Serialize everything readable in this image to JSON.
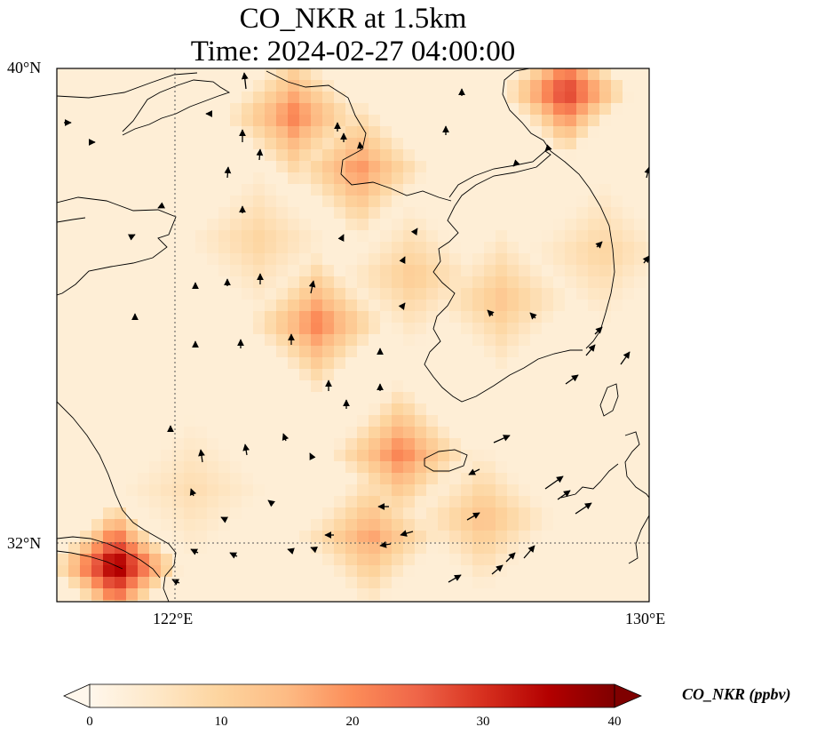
{
  "title": {
    "line1": "CO_NKR at 1.5km",
    "line2": "Time: 2024-02-27 04:00:00"
  },
  "map": {
    "lon_range": [
      120,
      130
    ],
    "lat_range": [
      31,
      40
    ],
    "lat_labels": [
      "40°N",
      "32°N"
    ],
    "lon_labels": [
      "122°E",
      "130°E"
    ],
    "gridlines": {
      "lon": 122,
      "lat": 32,
      "style": "dotted"
    }
  },
  "colorbar": {
    "label": "CO_NKR (ppbv)",
    "colormap": "OrRd",
    "range": [
      0,
      40
    ],
    "ticks": [
      "0",
      "10",
      "20",
      "30",
      "40"
    ],
    "extend": "both",
    "colors": [
      "#fff7ec",
      "#fee8c8",
      "#fdd49e",
      "#fdbb84",
      "#fc8d59",
      "#ef6548",
      "#d7301f",
      "#b30000",
      "#7f0000"
    ]
  },
  "chart_data": {
    "type": "heatmap",
    "variable": "CO_NKR",
    "units": "ppbv",
    "value_range": [
      0,
      40
    ],
    "hotspots": [
      {
        "lon": 121.0,
        "lat": 31.6,
        "value": 40
      },
      {
        "lon": 128.6,
        "lat": 39.6,
        "value": 31
      },
      {
        "lon": 124.0,
        "lat": 39.2,
        "value": 22
      },
      {
        "lon": 125.1,
        "lat": 38.3,
        "value": 20
      },
      {
        "lon": 126.0,
        "lat": 36.5,
        "value": 12
      },
      {
        "lon": 124.4,
        "lat": 35.7,
        "value": 22
      },
      {
        "lon": 125.8,
        "lat": 33.5,
        "value": 22
      },
      {
        "lon": 125.3,
        "lat": 32.1,
        "value": 18
      },
      {
        "lon": 127.2,
        "lat": 32.4,
        "value": 14
      },
      {
        "lon": 127.5,
        "lat": 36.1,
        "value": 13
      },
      {
        "lon": 129.2,
        "lat": 36.9,
        "value": 10
      },
      {
        "lon": 122.3,
        "lat": 32.9,
        "value": 8
      },
      {
        "lon": 123.4,
        "lat": 37.1,
        "value": 10
      }
    ]
  }
}
